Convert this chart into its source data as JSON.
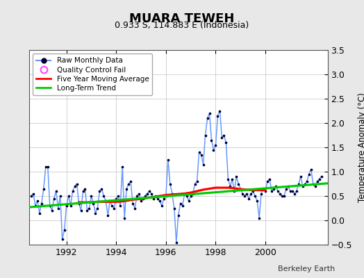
{
  "title": "MUARA TEWEH",
  "subtitle": "0.933 S, 114.883 E (Indonesia)",
  "ylabel_right": "Temperature Anomaly (°C)",
  "attribution": "Berkeley Earth",
  "ylim": [
    -0.5,
    3.5
  ],
  "xlim": [
    1990.5,
    2002.5
  ],
  "yticks": [
    -0.5,
    0.0,
    0.5,
    1.0,
    1.5,
    2.0,
    2.5,
    3.0,
    3.5
  ],
  "xticks": [
    1992,
    1994,
    1996,
    1998,
    2000
  ],
  "bg_color": "#e8e8e8",
  "plot_bg_color": "#ffffff",
  "raw_line_color": "#6699ff",
  "marker_color": "#000033",
  "ma_color": "#ff0000",
  "trend_color": "#00cc00",
  "raw_x": [
    1990.583,
    1990.667,
    1990.75,
    1990.833,
    1990.917,
    1991.0,
    1991.083,
    1991.167,
    1991.25,
    1991.333,
    1991.417,
    1991.5,
    1991.583,
    1991.667,
    1991.75,
    1991.833,
    1991.917,
    1992.0,
    1992.083,
    1992.167,
    1992.25,
    1992.333,
    1992.417,
    1992.5,
    1992.583,
    1992.667,
    1992.75,
    1992.833,
    1992.917,
    1993.0,
    1993.083,
    1993.167,
    1993.25,
    1993.333,
    1993.417,
    1993.5,
    1993.583,
    1993.667,
    1993.75,
    1993.833,
    1993.917,
    1994.0,
    1994.083,
    1994.167,
    1994.25,
    1994.333,
    1994.417,
    1994.5,
    1994.583,
    1994.667,
    1994.75,
    1994.833,
    1994.917,
    1995.0,
    1995.083,
    1995.167,
    1995.25,
    1995.333,
    1995.417,
    1995.5,
    1995.583,
    1995.667,
    1995.75,
    1995.833,
    1995.917,
    1996.0,
    1996.083,
    1996.167,
    1996.25,
    1996.333,
    1996.417,
    1996.5,
    1996.583,
    1996.667,
    1996.75,
    1996.833,
    1996.917,
    1997.0,
    1997.083,
    1997.167,
    1997.25,
    1997.333,
    1997.417,
    1997.5,
    1997.583,
    1997.667,
    1997.75,
    1997.833,
    1997.917,
    1998.0,
    1998.083,
    1998.167,
    1998.25,
    1998.333,
    1998.417,
    1998.5,
    1998.583,
    1998.667,
    1998.75,
    1998.833,
    1998.917,
    1999.0,
    1999.083,
    1999.167,
    1999.25,
    1999.333,
    1999.417,
    1999.5,
    1999.583,
    1999.667,
    1999.75,
    1999.833,
    1999.917,
    2000.0,
    2000.083,
    2000.167,
    2000.25,
    2000.333,
    2000.417,
    2000.5,
    2000.583,
    2000.667,
    2000.75,
    2000.833,
    2000.917,
    2001.0,
    2001.083,
    2001.167,
    2001.25,
    2001.333,
    2001.417,
    2001.5,
    2001.583,
    2001.667,
    2001.75,
    2001.833,
    2001.917,
    2002.0,
    2002.083,
    2002.167,
    2002.25
  ],
  "raw_y": [
    0.5,
    0.55,
    0.3,
    0.4,
    0.15,
    0.35,
    0.65,
    1.1,
    1.1,
    0.3,
    0.2,
    0.45,
    0.6,
    0.25,
    0.5,
    -0.38,
    -0.2,
    0.3,
    0.5,
    0.3,
    0.6,
    0.7,
    0.75,
    0.35,
    0.2,
    0.6,
    0.65,
    0.2,
    0.25,
    0.5,
    0.35,
    0.15,
    0.25,
    0.6,
    0.65,
    0.5,
    0.4,
    0.1,
    0.4,
    0.3,
    0.25,
    0.45,
    0.5,
    0.3,
    1.1,
    0.05,
    0.65,
    0.75,
    0.8,
    0.35,
    0.25,
    0.5,
    0.55,
    0.4,
    0.45,
    0.5,
    0.55,
    0.6,
    0.55,
    0.45,
    0.5,
    0.45,
    0.4,
    0.3,
    0.45,
    0.5,
    1.25,
    0.75,
    0.55,
    0.25,
    -0.45,
    0.1,
    0.35,
    0.3,
    0.55,
    0.5,
    0.4,
    0.5,
    0.55,
    0.75,
    0.8,
    1.4,
    1.35,
    1.15,
    1.75,
    2.1,
    2.2,
    1.65,
    1.45,
    1.55,
    2.15,
    2.25,
    1.7,
    1.75,
    1.6,
    0.85,
    0.7,
    0.85,
    0.6,
    0.9,
    0.75,
    0.65,
    0.55,
    0.5,
    0.55,
    0.45,
    0.55,
    0.6,
    0.5,
    0.4,
    0.05,
    0.55,
    0.65,
    0.6,
    0.8,
    0.85,
    0.6,
    0.65,
    0.7,
    0.6,
    0.55,
    0.5,
    0.5,
    0.65,
    0.7,
    0.6,
    0.6,
    0.55,
    0.6,
    0.75,
    0.9,
    0.7,
    0.75,
    0.8,
    0.95,
    1.05,
    0.75,
    0.7,
    0.8,
    0.85,
    0.9
  ],
  "ma_x": [
    1992.5,
    1992.75,
    1993.0,
    1993.25,
    1993.5,
    1993.75,
    1994.0,
    1994.25,
    1994.5,
    1994.75,
    1995.0,
    1995.25,
    1995.5,
    1995.75,
    1996.0,
    1996.25,
    1996.5,
    1996.75,
    1997.0,
    1997.25,
    1997.5,
    1997.75,
    1998.0,
    1998.25,
    1998.5,
    1998.75,
    1999.0,
    1999.25,
    1999.5,
    1999.75,
    2000.0
  ],
  "ma_y": [
    0.37,
    0.37,
    0.37,
    0.38,
    0.38,
    0.38,
    0.38,
    0.39,
    0.41,
    0.43,
    0.44,
    0.46,
    0.48,
    0.5,
    0.52,
    0.53,
    0.54,
    0.55,
    0.57,
    0.6,
    0.63,
    0.65,
    0.67,
    0.67,
    0.67,
    0.66,
    0.64,
    0.63,
    0.62,
    0.62,
    0.62
  ],
  "trend_x": [
    1990.5,
    2002.5
  ],
  "trend_y": [
    0.27,
    0.76
  ]
}
